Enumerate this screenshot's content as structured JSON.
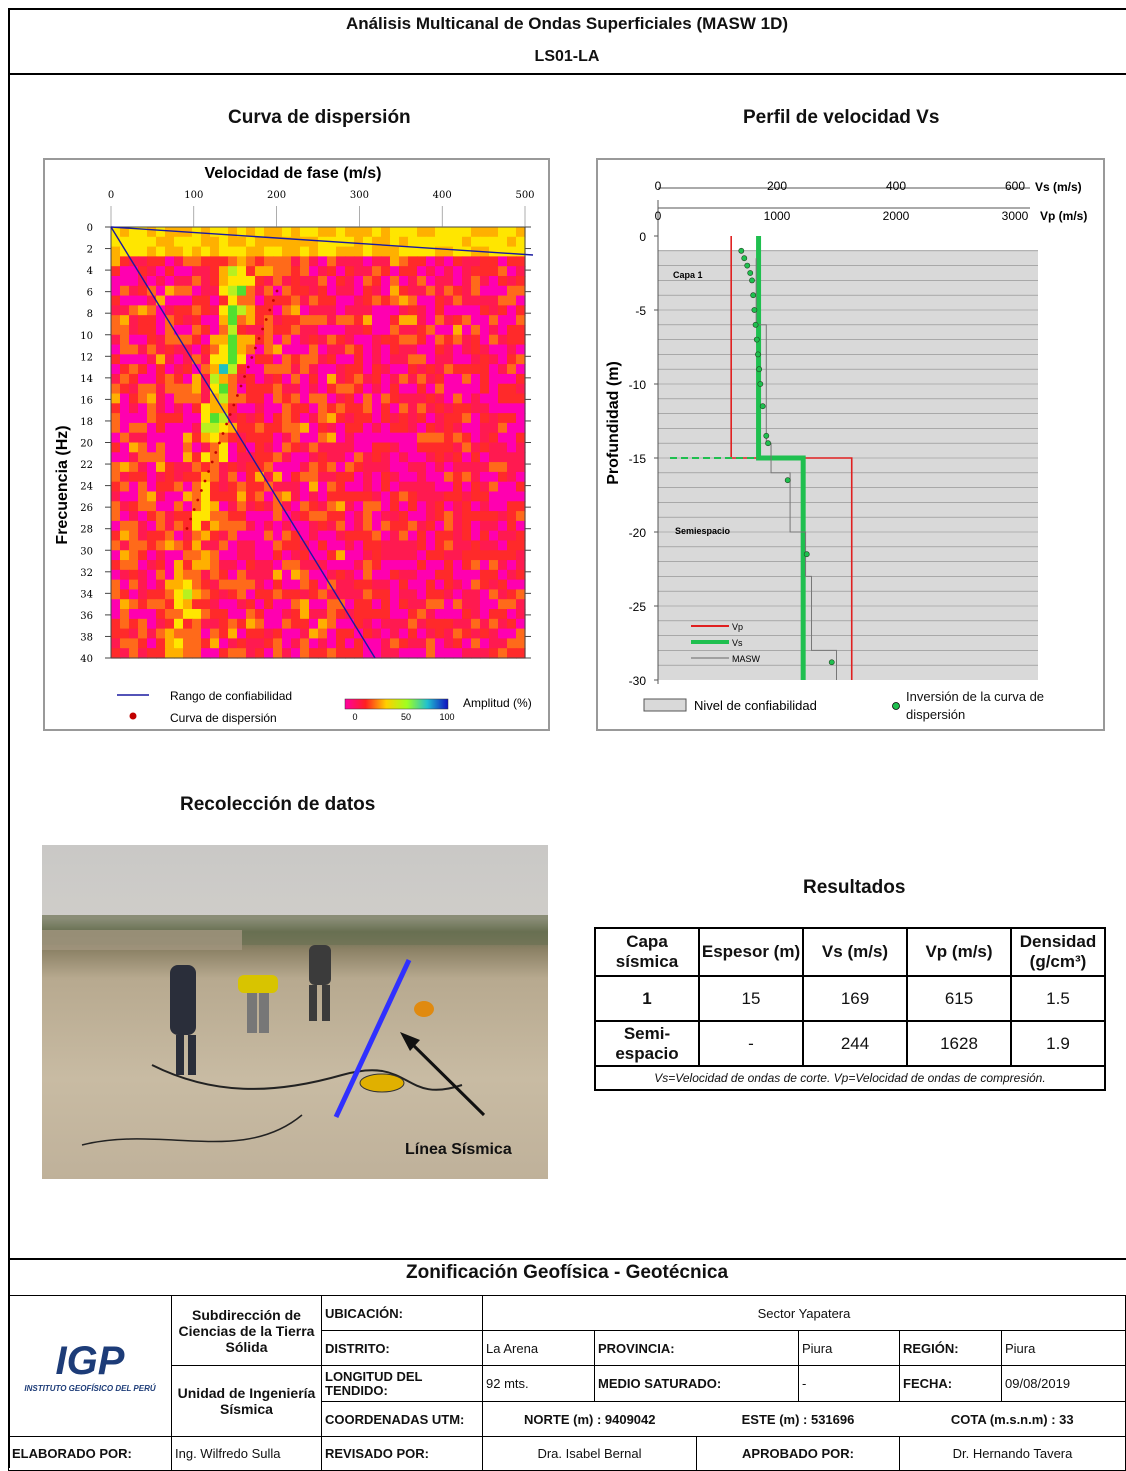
{
  "header": {
    "title": "Análisis Multicanal de Ondas Superficiales (MASW 1D)",
    "code": "LS01-LA"
  },
  "dispersion": {
    "section_title": "Curva de dispersión",
    "x_title": "Velocidad de fase (m/s)",
    "x_ticks": [
      "0",
      "100",
      "200",
      "300",
      "400",
      "500"
    ],
    "y_title": "Frecuencia (Hz)",
    "y_ticks": [
      "0",
      "2",
      "4",
      "6",
      "8",
      "10",
      "12",
      "14",
      "16",
      "18",
      "20",
      "22",
      "24",
      "26",
      "28",
      "30",
      "32",
      "34",
      "36",
      "38",
      "40"
    ],
    "legend_range": "Rango de confiabilidad",
    "legend_curve": "Curva de dispersión",
    "amp_label": "Amplitud (%)",
    "amp_ticks": [
      "0",
      "50",
      "100"
    ]
  },
  "profile": {
    "section_title": "Perfil de velocidad Vs",
    "vs_ticks": [
      "0",
      "200",
      "400",
      "600"
    ],
    "vs_unit": "Vs (m/s)",
    "vp_ticks": [
      "0",
      "1000",
      "2000",
      "3000"
    ],
    "vp_unit": "Vp (m/s)",
    "y_title": "Profundidad (m)",
    "y_ticks": [
      "0",
      "-5",
      "-10",
      "-15",
      "-20",
      "-25",
      "-30"
    ],
    "layer1": "Capa  1",
    "halfspace": "Semiespacio",
    "legend_vp": "Vp",
    "legend_vs": "Vs",
    "legend_masw": "MASW",
    "confidence": "Nivel de confiabilidad",
    "inversion": "Inversión de la curva de dispersión",
    "colors": {
      "vp": "#e02020",
      "vs": "#1fbf4f"
    }
  },
  "chart_data": [
    {
      "type": "line",
      "title": "Perfil de velocidad Vs",
      "xlabel": "Vs (m/s)",
      "ylabel": "Profundidad (m)",
      "ylim": [
        -30,
        0
      ],
      "xlim": [
        0,
        600
      ],
      "series": [
        {
          "name": "Vs",
          "x": [
            169,
            169,
            244,
            244
          ],
          "y": [
            0,
            -15,
            -15,
            -30
          ]
        },
        {
          "name": "Vp",
          "x": [
            615,
            615,
            1628,
            1628
          ],
          "y": [
            0,
            -15,
            -15,
            -30
          ]
        }
      ]
    }
  ],
  "photo": {
    "caption": "Recolección de datos",
    "label": "Línea  Sísmica"
  },
  "results": {
    "title": "Resultados",
    "headers": [
      "Capa sísmica",
      "Espesor (m)",
      "Vs (m/s)",
      "Vp (m/s)",
      "Densidad (g/cm³)"
    ],
    "rows": [
      [
        "1",
        "15",
        "169",
        "615",
        "1.5"
      ],
      [
        "Semi-espacio",
        "-",
        "244",
        "1628",
        "1.9"
      ]
    ],
    "note": "Vs=Velocidad de ondas de corte.   Vp=Velocidad de ondas de compresión."
  },
  "footer": {
    "title": "Zonificación Geofísica - Geotécnica",
    "logo": "IGP",
    "logo_sub": "INSTITUTO GEOFÍSICO DEL PERÚ",
    "unit1": "Subdirección de Ciencias de la Tierra Sólida",
    "unit2": "Unidad de Ingeniería Sísmica",
    "ubicacion_label": "UBICACIÓN:",
    "ubicacion": "Sector Yapatera",
    "distrito_label": "DISTRITO:",
    "distrito": "La Arena",
    "provincia_label": "PROVINCIA:",
    "provincia": "Piura",
    "region_label": "REGIÓN:",
    "region": "Piura",
    "longitud_label": "LONGITUD DEL TENDIDO:",
    "longitud": "92 mts.",
    "medio_label": "MEDIO SATURADO:",
    "medio": "-",
    "fecha_label": "FECHA:",
    "fecha": "09/08/2019",
    "coord_label": "COORDENADAS UTM:",
    "norte": "NORTE (m) : 9409042",
    "este": "ESTE (m) : 531696",
    "cota": "COTA (m.s.n.m) : 33",
    "elaborado_label": "ELABORADO POR:",
    "elaborado": "Ing. Wilfredo Sulla",
    "revisado_label": "REVISADO POR:",
    "revisado": "Dra. Isabel Bernal",
    "aprobado_label": "APROBADO POR:",
    "aprobado": "Dr. Hernando Tavera"
  }
}
